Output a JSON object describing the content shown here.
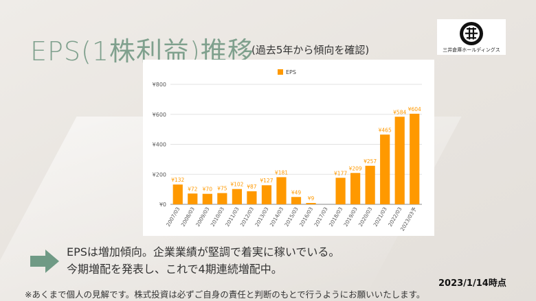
{
  "slide": {
    "title": "EPS(1株利益)推移",
    "subtitle": "(過去5年から傾向を確認)",
    "logo_text": "三井倉庫ホールディングス",
    "comment_line1": "EPSは増加傾向。企業業績が堅調で着実に稼いでいる。",
    "comment_line2": "今期増配を発表し、これで4期連続増配中。",
    "date": "2023/1/14時点",
    "disclaimer": "※あくまで個人の見解です。株式投資は必ずご自身の責任と判断のもとで行うようにお願いいたします。"
  },
  "chart_data": {
    "type": "bar",
    "categories": [
      "2007/03",
      "2008/03",
      "2009/03",
      "2010/03",
      "2011/03",
      "2012/03",
      "2013/03",
      "2014/03",
      "2015/03",
      "2016/03",
      "2017/03",
      "2018/03",
      "2019/03",
      "2020/03",
      "2021/03",
      "2022/03",
      "2023/03予"
    ],
    "series": [
      {
        "name": "EPS",
        "values": [
          132,
          72,
          70,
          75,
          102,
          87,
          127,
          181,
          49,
          9,
          null,
          177,
          209,
          257,
          465,
          584,
          604
        ],
        "labels": [
          "¥132",
          "¥72",
          "¥70",
          "¥75",
          "¥102",
          "¥87",
          "¥127",
          "¥181",
          "¥49",
          "¥9",
          "",
          "¥177",
          "¥209",
          "¥257",
          "¥465",
          "¥584",
          "¥604"
        ],
        "color": "#ff9900"
      }
    ],
    "yticks": [
      "¥0",
      "¥200",
      "¥400",
      "¥600",
      "¥800"
    ],
    "ytick_values": [
      0,
      200,
      400,
      600,
      800
    ],
    "ylim": [
      0,
      800
    ],
    "legend": "top-left",
    "grid": true
  },
  "colors": {
    "title": "#7fa08d",
    "arrow": "#6f9a85",
    "bar": "#ff9900",
    "label": "#ff9900"
  }
}
